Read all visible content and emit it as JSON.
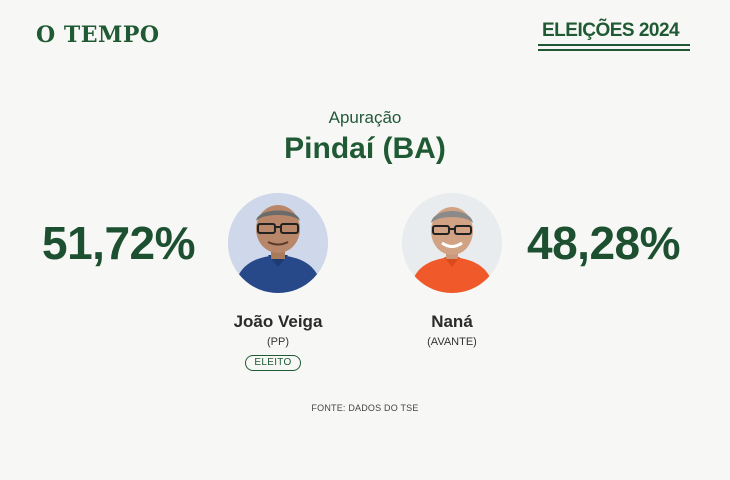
{
  "header": {
    "brand": "O TEMPO",
    "elections_label": "ELEIÇÕES 2024"
  },
  "main": {
    "subtitle": "Apuração",
    "city": "Pindaí (BA)"
  },
  "candidates": [
    {
      "percent": "51,72%",
      "name": "João Veiga",
      "party": "(PP)",
      "status": "ELEITO"
    },
    {
      "percent": "48,28%",
      "name": "Naná",
      "party": "(AVANTE)"
    }
  ],
  "footer": {
    "source": "FONTE: DADOS DO TSE"
  },
  "colors": {
    "brand_green": "#1f5a34",
    "background": "#f7f8f5",
    "left_shirt": "#27498a",
    "right_shirt": "#f05a2a"
  }
}
